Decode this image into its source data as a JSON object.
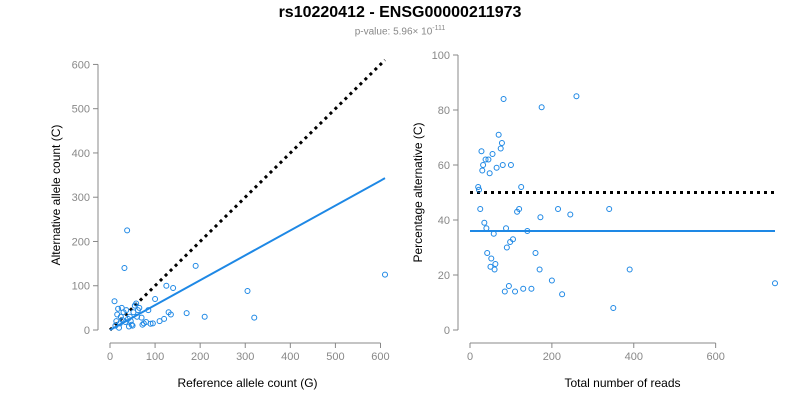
{
  "figure": {
    "title": "rs10220412 - ENSG00000211973",
    "pvalue_prefix": "p-value: 5.96× 10",
    "pvalue_exponent": "-111"
  },
  "colors": {
    "points": "#1e88e5",
    "fit_line": "#1e88e5",
    "reference_line": "#000000",
    "axis": "#888888",
    "tick_text": "#888888"
  },
  "chart_data": [
    {
      "type": "scatter",
      "name": "allele-count-scatter",
      "xlabel": "Reference allele count (G)",
      "ylabel": "Alternative allele count (C)",
      "xlim": [
        0,
        610
      ],
      "ylim": [
        0,
        610
      ],
      "xticks": [
        0,
        100,
        200,
        300,
        400,
        500,
        600
      ],
      "yticks": [
        0,
        100,
        200,
        300,
        400,
        500,
        600
      ],
      "points": [
        [
          10,
          65
        ],
        [
          12,
          10
        ],
        [
          14,
          20
        ],
        [
          16,
          35
        ],
        [
          18,
          48
        ],
        [
          20,
          5
        ],
        [
          22,
          15
        ],
        [
          24,
          30
        ],
        [
          26,
          50
        ],
        [
          28,
          22
        ],
        [
          30,
          40
        ],
        [
          32,
          140
        ],
        [
          34,
          18
        ],
        [
          36,
          45
        ],
        [
          38,
          225
        ],
        [
          40,
          25
        ],
        [
          42,
          8
        ],
        [
          44,
          30
        ],
        [
          46,
          20
        ],
        [
          48,
          12
        ],
        [
          50,
          10
        ],
        [
          52,
          40
        ],
        [
          55,
          55
        ],
        [
          58,
          60
        ],
        [
          60,
          30
        ],
        [
          62,
          45
        ],
        [
          65,
          50
        ],
        [
          70,
          28
        ],
        [
          72,
          12
        ],
        [
          75,
          15
        ],
        [
          80,
          18
        ],
        [
          85,
          45
        ],
        [
          90,
          14
        ],
        [
          95,
          15
        ],
        [
          100,
          70
        ],
        [
          110,
          20
        ],
        [
          120,
          25
        ],
        [
          125,
          100
        ],
        [
          130,
          40
        ],
        [
          135,
          35
        ],
        [
          140,
          95
        ],
        [
          170,
          38
        ],
        [
          190,
          145
        ],
        [
          210,
          30
        ],
        [
          305,
          88
        ],
        [
          320,
          28
        ],
        [
          610,
          125
        ]
      ],
      "reference_line": {
        "style": "dotted",
        "from": [
          0,
          0
        ],
        "to": [
          610,
          610
        ]
      },
      "fit_line": {
        "style": "solid",
        "from": [
          0,
          0
        ],
        "to": [
          610,
          343
        ]
      }
    },
    {
      "type": "scatter",
      "name": "percentage-scatter",
      "xlabel": "Total number of reads",
      "ylabel": "Percentage alternative (C)",
      "xlim": [
        0,
        745
      ],
      "ylim": [
        0,
        100
      ],
      "xticks": [
        0,
        200,
        400,
        600
      ],
      "yticks": [
        0,
        20,
        40,
        60,
        80,
        100
      ],
      "points": [
        [
          20,
          52
        ],
        [
          22,
          51
        ],
        [
          25,
          44
        ],
        [
          28,
          65
        ],
        [
          30,
          58
        ],
        [
          32,
          60
        ],
        [
          35,
          39
        ],
        [
          38,
          62
        ],
        [
          40,
          37
        ],
        [
          42,
          28
        ],
        [
          45,
          62
        ],
        [
          48,
          57
        ],
        [
          50,
          23
        ],
        [
          52,
          26
        ],
        [
          55,
          64
        ],
        [
          58,
          35
        ],
        [
          60,
          22
        ],
        [
          62,
          24
        ],
        [
          65,
          59
        ],
        [
          70,
          71
        ],
        [
          75,
          66
        ],
        [
          78,
          68
        ],
        [
          80,
          60
        ],
        [
          82,
          84
        ],
        [
          85,
          14
        ],
        [
          88,
          37
        ],
        [
          90,
          30
        ],
        [
          95,
          16
        ],
        [
          98,
          32
        ],
        [
          100,
          60
        ],
        [
          105,
          33
        ],
        [
          110,
          14
        ],
        [
          115,
          43
        ],
        [
          120,
          44
        ],
        [
          125,
          52
        ],
        [
          130,
          15
        ],
        [
          140,
          36
        ],
        [
          150,
          15
        ],
        [
          160,
          28
        ],
        [
          170,
          22
        ],
        [
          172,
          41
        ],
        [
          175,
          81
        ],
        [
          200,
          18
        ],
        [
          215,
          44
        ],
        [
          225,
          13
        ],
        [
          245,
          42
        ],
        [
          260,
          85
        ],
        [
          340,
          44
        ],
        [
          350,
          8
        ],
        [
          390,
          22
        ],
        [
          745,
          17
        ]
      ],
      "reference_line": {
        "style": "dotted",
        "y": 50
      },
      "fit_line": {
        "style": "solid",
        "y": 36
      }
    }
  ]
}
